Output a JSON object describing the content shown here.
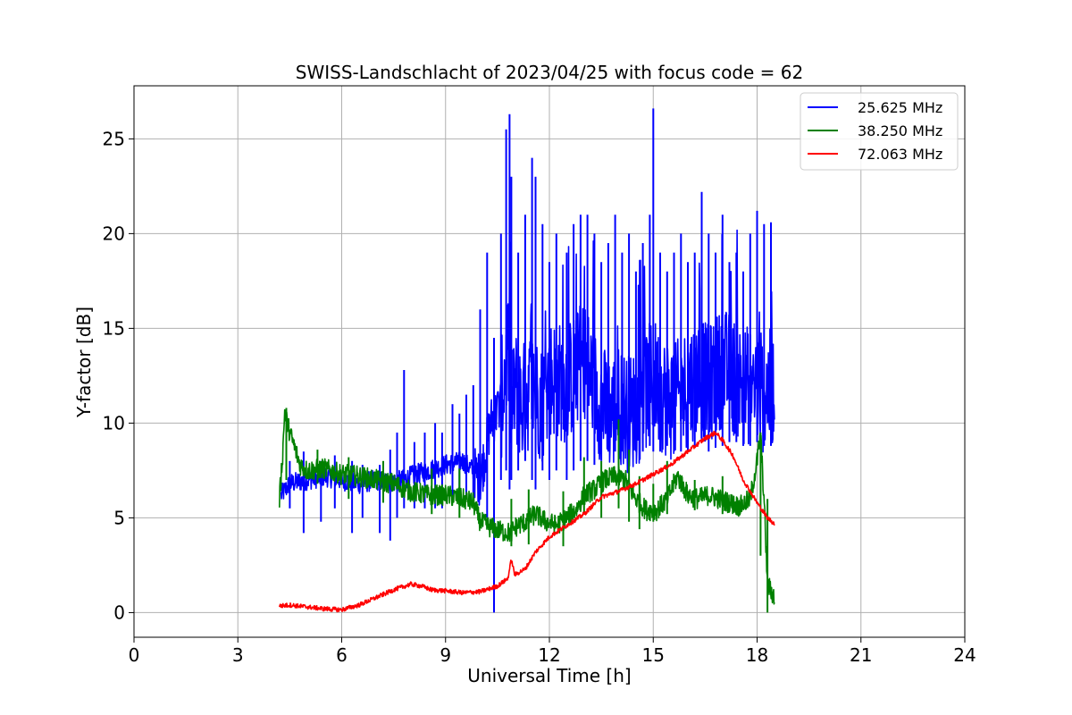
{
  "chart_data": {
    "type": "line",
    "title": "SWISS-Landschlacht of 2023/04/25 with focus code = 62",
    "xlabel": "Universal Time [h]",
    "ylabel": "Y-factor [dB]",
    "xlim": [
      0,
      24
    ],
    "ylim": [
      -1.3,
      27.8
    ],
    "xticks": [
      0,
      3,
      6,
      9,
      12,
      15,
      18,
      21,
      24
    ],
    "yticks": [
      0,
      5,
      10,
      15,
      20,
      25
    ],
    "grid": true,
    "legend_position": "top-right",
    "series": [
      {
        "name": "25.625 MHz",
        "color": "#0000ff",
        "x": [
          4.25,
          4.5,
          5.0,
          5.5,
          6.0,
          6.5,
          7.0,
          7.5,
          7.8,
          8.0,
          8.5,
          9.0,
          9.5,
          9.8,
          10.0,
          10.3,
          10.6,
          10.8,
          10.9,
          11.0,
          11.2,
          11.5,
          11.8,
          12.0,
          12.5,
          13.0,
          13.3,
          13.5,
          13.8,
          14.0,
          14.3,
          14.6,
          15.0,
          15.3,
          15.6,
          16.0,
          16.3,
          16.6,
          17.0,
          17.3,
          17.6,
          18.0,
          18.2,
          18.5
        ],
        "y": [
          6.2,
          6.8,
          7.0,
          7.2,
          7.0,
          6.8,
          7.0,
          6.9,
          7.0,
          7.2,
          7.5,
          7.8,
          8.0,
          7.5,
          7.0,
          10.0,
          11.0,
          14.0,
          10.0,
          12.0,
          11.0,
          12.0,
          11.0,
          12.5,
          12.0,
          13.5,
          12.0,
          11.0,
          10.5,
          11.0,
          10.5,
          11.0,
          12.5,
          11.5,
          11.0,
          12.0,
          12.5,
          12.0,
          13.0,
          12.5,
          12.0,
          12.0,
          11.5,
          12.0
        ],
        "spike_x": [
          4.5,
          4.9,
          5.4,
          5.8,
          6.3,
          6.6,
          7.1,
          7.4,
          7.6,
          7.8,
          8.1,
          8.4,
          8.7,
          8.9,
          9.2,
          9.4,
          9.6,
          9.8,
          10.0,
          10.2,
          10.4,
          10.6,
          10.75,
          10.85,
          10.9,
          11.1,
          11.3,
          11.5,
          11.6,
          11.8,
          12.0,
          12.2,
          12.5,
          12.7,
          12.9,
          13.1,
          13.3,
          13.5,
          13.7,
          13.9,
          14.1,
          14.3,
          14.5,
          14.7,
          14.9,
          15.0,
          15.2,
          15.4,
          15.6,
          15.8,
          16.0,
          16.2,
          16.4,
          16.6,
          16.8,
          17.0,
          17.2,
          17.4,
          17.6,
          17.8,
          18.0,
          18.2,
          18.4
        ],
        "spike_top": [
          8.0,
          8.5,
          8.0,
          8.3,
          8.0,
          7.8,
          7.8,
          8.6,
          9.5,
          12.8,
          9.0,
          9.5,
          10.0,
          9.5,
          11.0,
          10.5,
          11.5,
          12.0,
          16.0,
          19.0,
          14.5,
          20.0,
          25.5,
          26.3,
          23.0,
          19.0,
          21.0,
          24.0,
          23.0,
          20.5,
          18.5,
          20.0,
          19.0,
          20.5,
          21.0,
          21.0,
          20.0,
          18.5,
          19.5,
          21.0,
          19.0,
          20.0,
          18.0,
          19.5,
          21.0,
          26.6,
          19.0,
          18.0,
          19.0,
          20.0,
          18.5,
          19.0,
          22.2,
          20.0,
          19.0,
          21.0,
          18.5,
          19.0,
          18.0,
          20.0,
          21.2,
          20.5,
          20.6
        ],
        "spike_bottom": [
          5.5,
          4.2,
          4.8,
          5.5,
          4.2,
          5.0,
          4.2,
          3.8,
          5.0,
          5.5,
          5.5,
          5.5,
          5.5,
          5.5,
          6.0,
          5.8,
          6.0,
          6.0,
          6.5,
          5.0,
          0.0,
          7.0,
          7.5,
          6.5,
          7.0,
          7.5,
          8.0,
          7.0,
          6.5,
          7.5,
          7.0,
          7.5,
          7.0,
          7.5,
          8.0,
          8.0,
          7.8,
          8.0,
          8.5,
          8.5,
          8.5,
          8.0,
          8.5,
          8.5,
          8.8,
          8.5,
          8.5,
          8.8,
          8.5,
          8.5,
          8.5,
          8.8,
          9.0,
          8.5,
          8.7,
          8.8,
          9.0,
          9.0,
          8.8,
          8.8,
          9.0,
          8.8,
          8.8
        ]
      },
      {
        "name": "38.250 MHz",
        "color": "#008000",
        "x": [
          4.2,
          4.3,
          4.35,
          4.5,
          4.8,
          5.0,
          5.5,
          6.0,
          6.5,
          7.0,
          7.5,
          8.0,
          8.5,
          9.0,
          9.5,
          9.8,
          10.0,
          10.3,
          10.6,
          10.9,
          11.0,
          11.3,
          11.6,
          11.9,
          12.2,
          12.5,
          12.8,
          13.0,
          13.3,
          13.6,
          13.9,
          14.2,
          14.5,
          14.8,
          15.1,
          15.4,
          15.7,
          16.0,
          16.3,
          16.6,
          16.9,
          17.2,
          17.5,
          17.8,
          18.0,
          18.1,
          18.2,
          18.3,
          18.5
        ],
        "y": [
          6.0,
          8.5,
          10.6,
          9.5,
          7.8,
          7.5,
          7.6,
          7.3,
          7.2,
          7.0,
          6.8,
          6.4,
          6.2,
          6.2,
          6.0,
          5.8,
          4.8,
          4.5,
          4.3,
          4.2,
          4.5,
          4.8,
          5.2,
          4.8,
          4.6,
          5.0,
          5.5,
          6.2,
          6.5,
          7.0,
          7.2,
          7.0,
          6.0,
          5.4,
          5.4,
          6.0,
          7.2,
          6.2,
          6.0,
          6.2,
          6.0,
          5.8,
          5.6,
          6.0,
          8.0,
          9.4,
          6.0,
          1.5,
          0.8
        ],
        "spike_x": [
          4.4,
          5.3,
          6.2,
          7.2,
          8.6,
          9.4,
          10.9,
          11.4,
          12.4,
          13.0,
          13.5,
          14.0,
          14.3,
          14.6,
          15.0,
          15.4,
          16.2,
          17.0,
          18.1,
          18.3
        ],
        "spike_top": [
          10.8,
          8.6,
          8.2,
          8.0,
          7.6,
          7.6,
          6.0,
          6.5,
          6.4,
          8.2,
          8.0,
          10.2,
          8.6,
          7.2,
          6.8,
          8.0,
          7.0,
          7.2,
          9.5,
          6.0
        ],
        "spike_bottom": [
          7.0,
          6.8,
          6.0,
          5.8,
          5.2,
          5.0,
          3.5,
          3.6,
          3.5,
          5.2,
          5.0,
          5.5,
          4.8,
          4.4,
          4.8,
          5.2,
          5.4,
          5.2,
          3.0,
          0.0
        ]
      },
      {
        "name": "72.063 MHz",
        "color": "#ff0000",
        "x": [
          4.2,
          4.5,
          5.0,
          5.5,
          6.0,
          6.5,
          7.0,
          7.5,
          8.0,
          8.3,
          8.6,
          9.0,
          9.5,
          10.0,
          10.5,
          10.8,
          10.9,
          11.0,
          11.3,
          11.6,
          12.0,
          12.5,
          13.0,
          13.5,
          14.0,
          14.5,
          15.0,
          15.5,
          16.0,
          16.5,
          16.8,
          17.0,
          17.3,
          17.6,
          18.0,
          18.3,
          18.5
        ],
        "y": [
          0.35,
          0.4,
          0.3,
          0.2,
          0.15,
          0.4,
          0.8,
          1.2,
          1.5,
          1.4,
          1.2,
          1.15,
          1.05,
          1.1,
          1.4,
          1.8,
          2.8,
          2.0,
          2.3,
          3.2,
          4.0,
          4.6,
          5.2,
          6.1,
          6.4,
          6.8,
          7.3,
          7.8,
          8.5,
          9.2,
          9.5,
          9.1,
          8.3,
          7.0,
          5.8,
          5.0,
          4.7
        ]
      }
    ]
  }
}
